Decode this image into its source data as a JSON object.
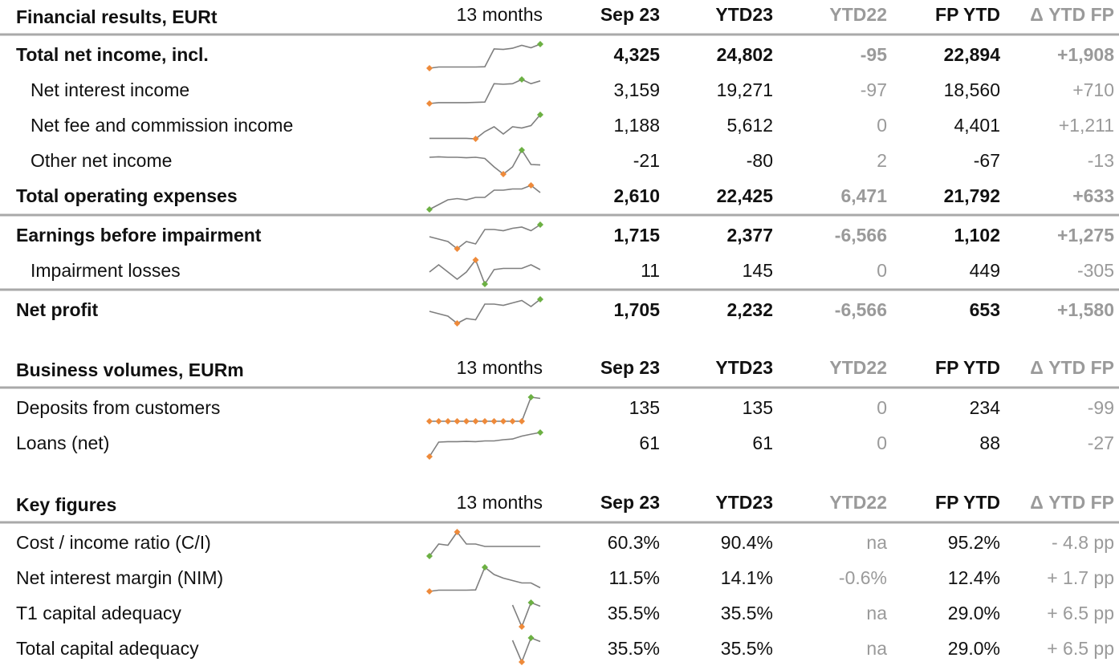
{
  "sections": [
    {
      "header": [
        "Financial results, EURt",
        "13 months",
        "Sep 23",
        "YTD23",
        "YTD22",
        "FP YTD",
        "Δ YTD FP"
      ],
      "rule_after": [
        4,
        6
      ],
      "rows": [
        {
          "label": "Total net income, incl.",
          "bold": true,
          "indent": false,
          "values": [
            "4,325",
            "24,802",
            "-95",
            "22,894",
            "+1,908"
          ],
          "spark": [
            0,
            0.5,
            0.5,
            0.5,
            0.5,
            0.5,
            0.6,
            8,
            7.8,
            8.3,
            9.5,
            8.5,
            10
          ],
          "min_color": "#ee8a3a",
          "max_color": "#6cb043"
        },
        {
          "label": "Net interest income",
          "bold": false,
          "indent": true,
          "values": [
            "3,159",
            "19,271",
            "-97",
            "18,560",
            "+710"
          ],
          "spark": [
            0,
            0.3,
            0.3,
            0.3,
            0.3,
            0.4,
            0.5,
            7,
            6.8,
            7,
            8.5,
            7,
            8
          ],
          "min_color": "#ee8a3a",
          "max_color": "#6cb043"
        },
        {
          "label": "Net fee and commission income",
          "bold": false,
          "indent": true,
          "values": [
            "1,188",
            "5,612",
            "0",
            "4,401",
            "+1,211"
          ],
          "spark": [
            0.2,
            0.2,
            0.2,
            0.2,
            0.2,
            0,
            3,
            5,
            2,
            5,
            4.5,
            5.5,
            10
          ],
          "min_color": "#ee8a3a",
          "max_color": "#6cb043"
        },
        {
          "label": "Other net income",
          "bold": false,
          "indent": true,
          "values": [
            "-21",
            "-80",
            "2",
            "-67",
            "-13"
          ],
          "spark": [
            7,
            7.2,
            7,
            7,
            6.8,
            7,
            6.5,
            3,
            0,
            3,
            10,
            4,
            3.8
          ],
          "min_color": "#ee8a3a",
          "max_color": "#6cb043"
        },
        {
          "label": "Total operating expenses",
          "bold": true,
          "indent": false,
          "values": [
            "2,610",
            "22,425",
            "6,471",
            "21,792",
            "+633"
          ],
          "spark": [
            0,
            2,
            4,
            4.5,
            4,
            5,
            5,
            8,
            8,
            8.5,
            8.5,
            10,
            7
          ],
          "min_color": "#6cb043",
          "max_color": "#ee8a3a"
        },
        {
          "label": "Earnings before impairment",
          "bold": true,
          "indent": false,
          "values": [
            "1,715",
            "2,377",
            "-6,566",
            "1,102",
            "+1,275"
          ],
          "spark": [
            5,
            4,
            3,
            0,
            3,
            2,
            8,
            8,
            7.5,
            8.5,
            9,
            7.5,
            10
          ],
          "min_color": "#ee8a3a",
          "max_color": "#6cb043"
        },
        {
          "label": "Impairment losses",
          "bold": false,
          "indent": true,
          "values": [
            "11",
            "145",
            "0",
            "449",
            "-305"
          ],
          "spark": [
            5,
            8,
            5,
            2,
            5,
            10,
            0,
            6,
            6.5,
            6.5,
            6.5,
            8,
            6
          ],
          "min_color": "#6cb043",
          "max_color": "#ee8a3a"
        },
        {
          "label": "Net profit",
          "bold": true,
          "indent": false,
          "values": [
            "1,705",
            "2,232",
            "-6,566",
            "653",
            "+1,580"
          ],
          "spark": [
            5,
            4,
            3,
            0,
            2,
            1.5,
            8,
            8,
            7.5,
            8.5,
            9.5,
            7,
            10
          ],
          "min_color": "#ee8a3a",
          "max_color": "#6cb043"
        }
      ]
    },
    {
      "header": [
        "Business volumes, EURm",
        "13 months",
        "Sep 23",
        "YTD23",
        "YTD22",
        "FP YTD",
        "Δ YTD FP"
      ],
      "rule_after": [],
      "rows": [
        {
          "label": "Deposits from customers",
          "bold": false,
          "indent": false,
          "values": [
            "135",
            "135",
            "0",
            "234",
            "-99"
          ],
          "spark": [
            0,
            0,
            0,
            0,
            0,
            0,
            0,
            0,
            0,
            0,
            0,
            10,
            9.5
          ],
          "min_color": "#ee8a3a",
          "max_color": "#6cb043"
        },
        {
          "label": "Loans (net)",
          "bold": false,
          "indent": false,
          "values": [
            "61",
            "61",
            "0",
            "88",
            "-27"
          ],
          "spark": [
            0,
            6,
            6.2,
            6.2,
            6.3,
            6.2,
            6.5,
            6.5,
            7,
            7.3,
            8.5,
            9.3,
            10
          ],
          "min_color": "#ee8a3a",
          "max_color": "#6cb043"
        }
      ]
    },
    {
      "header": [
        "Key figures",
        "13 months",
        "Sep 23",
        "YTD23",
        "YTD22",
        "FP YTD",
        "Δ YTD FP"
      ],
      "rule_after": [],
      "rows": [
        {
          "label": "Cost / income ratio (C/I)",
          "bold": false,
          "indent": false,
          "values": [
            "60.3%",
            "90.4%",
            "na",
            "95.2%",
            "- 4.8 pp"
          ],
          "spark": [
            0,
            5,
            4.5,
            10,
            5,
            5,
            4,
            4,
            4,
            4,
            4,
            4,
            4
          ],
          "min_color": "#6cb043",
          "max_color": "#ee8a3a"
        },
        {
          "label": "Net interest margin (NIM)",
          "bold": false,
          "indent": false,
          "values": [
            "11.5%",
            "14.1%",
            "-0.6%",
            "12.4%",
            "+ 1.7 pp"
          ],
          "spark": [
            0,
            0.5,
            0.5,
            0.5,
            0.5,
            0.6,
            10,
            7,
            5.5,
            4.5,
            3.5,
            3.5,
            1.5
          ],
          "min_color": "#ee8a3a",
          "max_color": "#6cb043"
        },
        {
          "label": "T1 capital adequacy",
          "bold": false,
          "indent": false,
          "values": [
            "35.5%",
            "35.5%",
            "na",
            "29.0%",
            "+ 6.5 pp"
          ],
          "spark": [
            null,
            null,
            null,
            null,
            null,
            null,
            null,
            null,
            null,
            9,
            0,
            10,
            8.5
          ],
          "min_color": "#ee8a3a",
          "max_color": "#6cb043"
        },
        {
          "label": "Total capital adequacy",
          "bold": false,
          "indent": false,
          "values": [
            "35.5%",
            "35.5%",
            "na",
            "29.0%",
            "+ 6.5 pp"
          ],
          "spark": [
            null,
            null,
            null,
            null,
            null,
            null,
            null,
            null,
            null,
            9,
            0,
            10,
            8.5
          ],
          "min_color": "#ee8a3a",
          "max_color": "#6cb043"
        }
      ]
    }
  ]
}
